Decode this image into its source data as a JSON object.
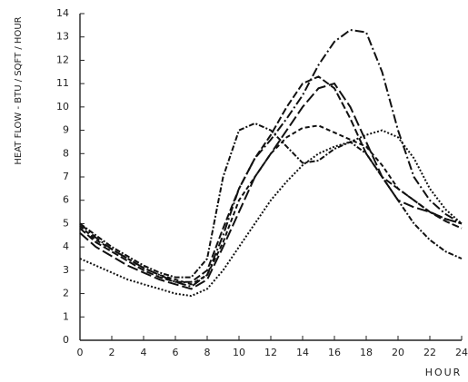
{
  "chart_data": {
    "type": "line",
    "xlabel": "HOUR",
    "ylabel": "HEAT FLOW - BTU / SQFT / HOUR",
    "x": [
      0,
      1,
      2,
      3,
      4,
      5,
      6,
      7,
      8,
      9,
      10,
      11,
      12,
      13,
      14,
      15,
      16,
      17,
      18,
      19,
      20,
      21,
      22,
      23,
      24
    ],
    "xlim": [
      0,
      24
    ],
    "xticks": [
      0,
      2,
      4,
      6,
      8,
      10,
      12,
      14,
      16,
      18,
      20,
      22,
      24
    ],
    "ylim": [
      0,
      14
    ],
    "yticks": [
      0,
      1,
      2,
      3,
      4,
      5,
      6,
      7,
      8,
      9,
      10,
      11,
      12,
      13,
      14
    ],
    "grid": false,
    "series": [
      {
        "color": "#111",
        "dash": "10 3 2 3",
        "values": [
          5.0,
          4.4,
          3.9,
          3.5,
          3.1,
          2.8,
          2.5,
          2.3,
          2.8,
          4.5,
          6.5,
          7.8,
          8.6,
          9.5,
          10.5,
          11.8,
          12.8,
          13.3,
          13.2,
          11.5,
          9,
          7,
          6,
          5.4,
          5.0
        ]
      },
      {
        "color": "#111",
        "dash": "8 3",
        "values": [
          4.8,
          4.2,
          3.8,
          3.4,
          3.0,
          2.7,
          2.5,
          2.5,
          3.0,
          4.8,
          6.5,
          7.8,
          8.8,
          10.0,
          11.0,
          11.3,
          10.8,
          9.5,
          8.0,
          7.0,
          6.5,
          6.0,
          5.5,
          5.1,
          4.8
        ]
      },
      {
        "color": "#111",
        "dash": "6 2 2 2",
        "values": [
          5.0,
          4.5,
          4.0,
          3.6,
          3.2,
          2.9,
          2.7,
          2.7,
          3.5,
          7.0,
          9.0,
          9.3,
          9.0,
          8.3,
          7.6,
          7.7,
          8.2,
          8.5,
          8.0,
          7.0,
          6.0,
          5.0,
          4.3,
          3.8,
          3.5
        ]
      },
      {
        "color": "#111",
        "dash": "12 4",
        "values": [
          4.6,
          4.0,
          3.6,
          3.2,
          2.9,
          2.6,
          2.4,
          2.2,
          2.6,
          4.0,
          5.5,
          7.0,
          8.0,
          9.0,
          10.0,
          10.8,
          11.0,
          10.0,
          8.5,
          7.0,
          6.0,
          5.7,
          5.5,
          5.2,
          5.0
        ]
      },
      {
        "color": "#111",
        "dash": "5 3",
        "values": [
          4.9,
          4.3,
          3.9,
          3.5,
          3.1,
          2.8,
          2.6,
          2.4,
          2.8,
          4.2,
          6.0,
          7.0,
          8.0,
          8.7,
          9.1,
          9.2,
          8.9,
          8.6,
          8.3,
          7.5,
          6.5,
          6.0,
          5.5,
          5.2,
          5.0
        ]
      },
      {
        "color": "#111",
        "dash": "2 2",
        "values": [
          3.5,
          3.2,
          2.9,
          2.6,
          2.4,
          2.2,
          2.0,
          1.9,
          2.2,
          3.0,
          4.0,
          5.0,
          6.0,
          6.8,
          7.5,
          8.0,
          8.3,
          8.5,
          8.8,
          9.0,
          8.7,
          7.8,
          6.5,
          5.6,
          5.0
        ]
      }
    ]
  }
}
